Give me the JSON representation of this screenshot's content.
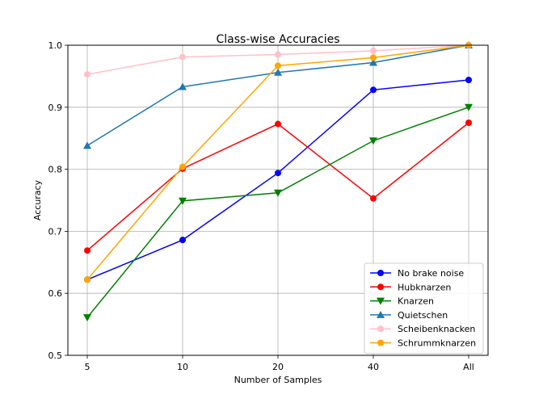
{
  "chart_data": {
    "type": "line",
    "title": "Class-wise Accuracies",
    "xlabel": "Number of Samples",
    "ylabel": "Accuracy",
    "categories": [
      "5",
      "10",
      "20",
      "40",
      "All"
    ],
    "ylim": [
      0.5,
      1.0
    ],
    "yticks": [
      "0.5",
      "0.6",
      "0.7",
      "0.8",
      "0.9",
      "1.0"
    ],
    "grid": true,
    "legend_position": "lower-right",
    "series": [
      {
        "name": "No brake noise",
        "color": "#0000ff",
        "marker": "circle",
        "values": [
          0.622,
          0.686,
          0.794,
          0.928,
          0.944
        ]
      },
      {
        "name": "Hubknarzen",
        "color": "#ff0000",
        "marker": "circle",
        "values": [
          0.669,
          0.801,
          0.873,
          0.753,
          0.875
        ]
      },
      {
        "name": "Knarzen",
        "color": "#008000",
        "marker": "triangle-down",
        "values": [
          0.561,
          0.749,
          0.762,
          0.846,
          0.9
        ]
      },
      {
        "name": "Quietschen",
        "color": "#1f77b4",
        "marker": "triangle-up",
        "values": [
          0.838,
          0.933,
          0.956,
          0.972,
          1.0
        ]
      },
      {
        "name": "Scheibenknacken",
        "color": "#ffc0cb",
        "marker": "circle",
        "values": [
          0.953,
          0.981,
          0.985,
          0.991,
          1.0
        ]
      },
      {
        "name": "Schrummknarzen",
        "color": "#ffa500",
        "marker": "circle",
        "values": [
          0.622,
          0.804,
          0.967,
          0.98,
          1.0
        ]
      }
    ]
  }
}
